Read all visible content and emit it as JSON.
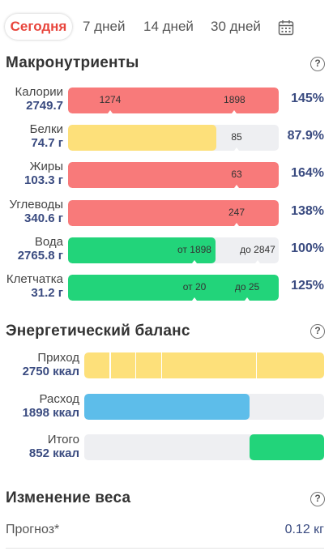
{
  "tabs": {
    "today": "Сегодня",
    "days7": "7 дней",
    "days14": "14 дней",
    "days30": "30 дней"
  },
  "macros": {
    "title": "Макронутриенты",
    "help": "?",
    "rows": [
      {
        "label": "Калории",
        "value": "2749.7",
        "percent": "145%",
        "fill_percent": 100,
        "color": "#f87a7a",
        "markers": [
          {
            "text": "1274",
            "at_percent": 20
          },
          {
            "text": "1898",
            "at_percent": 79
          }
        ]
      },
      {
        "label": "Белки",
        "value": "74.7 г",
        "percent": "87.9%",
        "fill_percent": 70.5,
        "color": "#fde07a",
        "markers": [
          {
            "text": "85",
            "at_percent": 80
          }
        ]
      },
      {
        "label": "Жиры",
        "value": "103.3 г",
        "percent": "164%",
        "fill_percent": 100,
        "color": "#f87a7a",
        "markers": [
          {
            "text": "63",
            "at_percent": 80
          }
        ]
      },
      {
        "label": "Углеводы",
        "value": "340.6 г",
        "percent": "138%",
        "fill_percent": 100,
        "color": "#f87a7a",
        "markers": [
          {
            "text": "247",
            "at_percent": 80
          }
        ]
      },
      {
        "label": "Вода",
        "value": "2765.8 г",
        "percent": "100%",
        "fill_percent": 70,
        "color": "#22d47a",
        "markers": [
          {
            "text": "от 1898",
            "at_percent": 60
          },
          {
            "text": "до 2847",
            "at_percent": 90
          }
        ]
      },
      {
        "label": "Клетчатка",
        "value": "31.2 г",
        "percent": "125%",
        "fill_percent": 100,
        "color": "#22d47a",
        "markers": [
          {
            "text": "от 20",
            "at_percent": 60
          },
          {
            "text": "до 25",
            "at_percent": 85
          }
        ]
      }
    ]
  },
  "energy": {
    "title": "Энергетический баланс",
    "help": "?",
    "rows": [
      {
        "label": "Приход",
        "value": "2750 ккал",
        "fill_percent": 100,
        "color": "#fde07a"
      },
      {
        "label": "Расход",
        "value": "1898 ккал",
        "fill_percent": 69,
        "color": "#5dbdea"
      },
      {
        "label": "Итого",
        "value": "852 ккал",
        "fill_percent": 31,
        "color": "#22d47a"
      }
    ]
  },
  "weight": {
    "title": "Изменение веса",
    "help": "?",
    "forecast_label": "Прогноз*",
    "forecast_value": "0.12 кг"
  }
}
